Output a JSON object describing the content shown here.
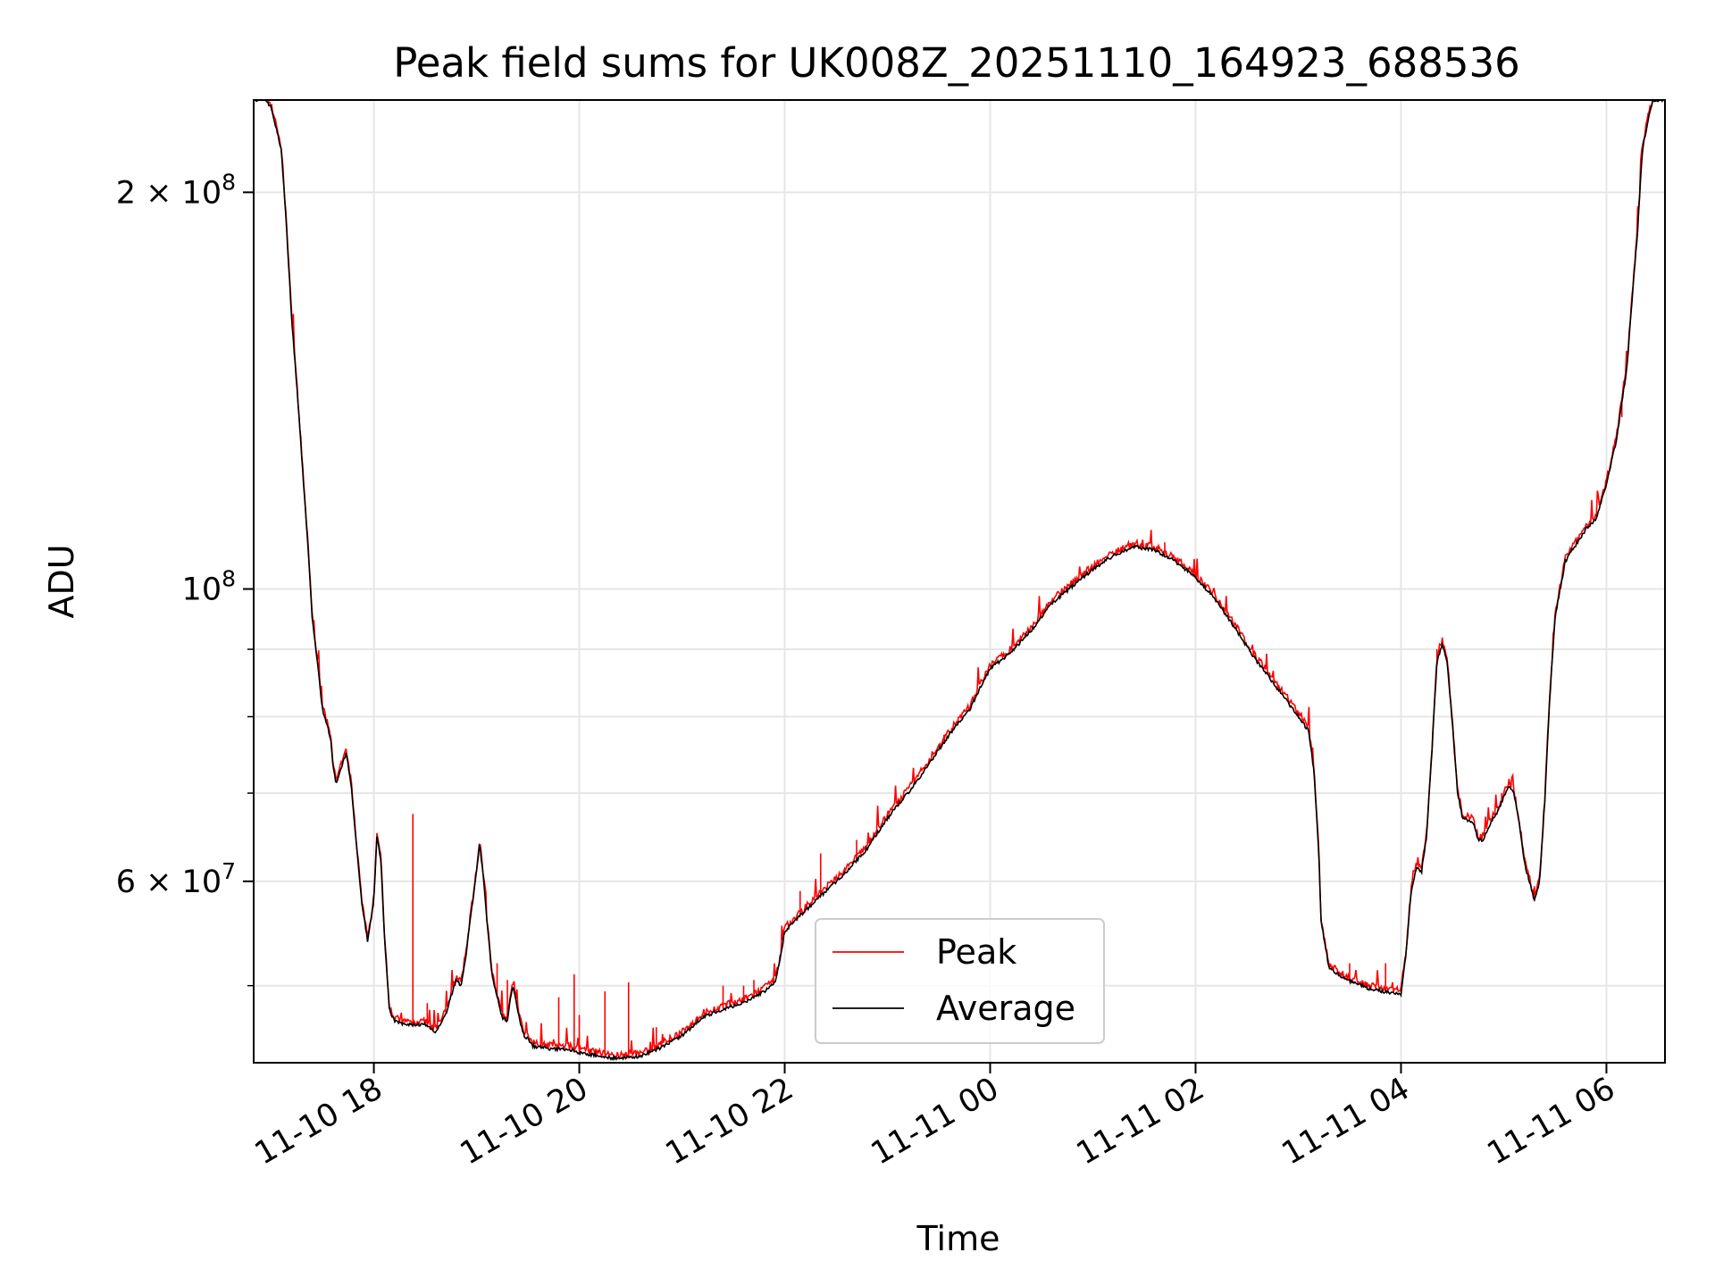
{
  "chart_data": {
    "type": "line",
    "title": "Peak field sums for UK008Z_20251110_164923_688536",
    "xlabel": "Time",
    "ylabel": "ADU",
    "yscale": "log",
    "grid": true,
    "legend_position": "lower center",
    "xlim_hours": [
      16.83,
      30.57
    ],
    "ylim": [
      43700000,
      235000000
    ],
    "x_units": "hours since 2025-11-10 00:00",
    "x_ticks": [
      {
        "value": 18,
        "label": "11-10 18"
      },
      {
        "value": 20,
        "label": "11-10 20"
      },
      {
        "value": 22,
        "label": "11-10 22"
      },
      {
        "value": 24,
        "label": "11-11 00"
      },
      {
        "value": 26,
        "label": "11-11 02"
      },
      {
        "value": 28,
        "label": "11-11 04"
      },
      {
        "value": 30,
        "label": "11-11 06"
      }
    ],
    "y_major_ticks": [
      {
        "value": 60000000,
        "base": "6 × 10",
        "exp": "7"
      },
      {
        "value": 100000000,
        "base": "10",
        "exp": "8"
      },
      {
        "value": 200000000,
        "base": "2 × 10",
        "exp": "8"
      }
    ],
    "y_minor_gridlines": [
      50000000,
      70000000,
      80000000,
      90000000
    ],
    "colors": {
      "peak": "#ff0000",
      "average": "#000000",
      "grid": "#e6e6e6",
      "legend_border": "#cccccc"
    },
    "series": [
      {
        "name": "Average",
        "color": "#000000",
        "points": [
          [
            16.85,
            235
          ],
          [
            16.95,
            235
          ],
          [
            17.0,
            232
          ],
          [
            17.1,
            215
          ],
          [
            17.2,
            160
          ],
          [
            17.3,
            125
          ],
          [
            17.4,
            95
          ],
          [
            17.5,
            81
          ],
          [
            17.58,
            77
          ],
          [
            17.6,
            74
          ],
          [
            17.63,
            71
          ],
          [
            17.68,
            73
          ],
          [
            17.73,
            75
          ],
          [
            17.78,
            71
          ],
          [
            17.83,
            64
          ],
          [
            17.88,
            58
          ],
          [
            17.94,
            54
          ],
          [
            18.0,
            58
          ],
          [
            18.03,
            65
          ],
          [
            18.07,
            62
          ],
          [
            18.1,
            55
          ],
          [
            18.15,
            48
          ],
          [
            18.2,
            47
          ],
          [
            18.3,
            46.7
          ],
          [
            18.4,
            46.7
          ],
          [
            18.5,
            46.7
          ],
          [
            18.6,
            46
          ],
          [
            18.7,
            47.6
          ],
          [
            18.75,
            49
          ],
          [
            18.8,
            50.5
          ],
          [
            18.85,
            50
          ],
          [
            18.9,
            53
          ],
          [
            18.95,
            57
          ],
          [
            19.0,
            61
          ],
          [
            19.03,
            64
          ],
          [
            19.07,
            60
          ],
          [
            19.1,
            56
          ],
          [
            19.15,
            51
          ],
          [
            19.2,
            49
          ],
          [
            19.25,
            47.3
          ],
          [
            19.3,
            47
          ],
          [
            19.35,
            50
          ],
          [
            19.4,
            48
          ],
          [
            19.45,
            46
          ],
          [
            19.55,
            45
          ],
          [
            19.7,
            44.8
          ],
          [
            19.9,
            44.7
          ],
          [
            20.0,
            44.5
          ],
          [
            20.2,
            44.2
          ],
          [
            20.4,
            44
          ],
          [
            20.6,
            44.2
          ],
          [
            20.8,
            44.9
          ],
          [
            21.0,
            45.8
          ],
          [
            21.2,
            47.3
          ],
          [
            21.4,
            48
          ],
          [
            21.6,
            48.5
          ],
          [
            21.8,
            49.5
          ],
          [
            21.9,
            50.2
          ],
          [
            21.95,
            52
          ],
          [
            22.0,
            55
          ],
          [
            22.2,
            57
          ],
          [
            22.4,
            59
          ],
          [
            22.6,
            61
          ],
          [
            22.8,
            63.5
          ],
          [
            23.0,
            67
          ],
          [
            23.2,
            70
          ],
          [
            23.4,
            73.5
          ],
          [
            23.6,
            77.5
          ],
          [
            23.8,
            81
          ],
          [
            24.0,
            87
          ],
          [
            24.2,
            89.5
          ],
          [
            24.4,
            93
          ],
          [
            24.6,
            97.5
          ],
          [
            24.8,
            100.5
          ],
          [
            25.0,
            103.5
          ],
          [
            25.2,
            106
          ],
          [
            25.4,
            107.7
          ],
          [
            25.6,
            107
          ],
          [
            25.8,
            105
          ],
          [
            26.0,
            102
          ],
          [
            26.2,
            98
          ],
          [
            26.4,
            93
          ],
          [
            26.6,
            88
          ],
          [
            26.8,
            84
          ],
          [
            27.0,
            80
          ],
          [
            27.1,
            78
          ],
          [
            27.15,
            73
          ],
          [
            27.2,
            63
          ],
          [
            27.22,
            56
          ],
          [
            27.3,
            51.5
          ],
          [
            27.5,
            50.4
          ],
          [
            27.7,
            49.7
          ],
          [
            27.9,
            49.4
          ],
          [
            28.0,
            49.3
          ],
          [
            28.05,
            53
          ],
          [
            28.1,
            59
          ],
          [
            28.15,
            61.5
          ],
          [
            28.2,
            61
          ],
          [
            28.25,
            65
          ],
          [
            28.3,
            75
          ],
          [
            28.35,
            88
          ],
          [
            28.4,
            91
          ],
          [
            28.45,
            88
          ],
          [
            28.5,
            79
          ],
          [
            28.55,
            70
          ],
          [
            28.6,
            67
          ],
          [
            28.7,
            66.5
          ],
          [
            28.75,
            64.5
          ],
          [
            28.8,
            64.5
          ],
          [
            28.85,
            66
          ],
          [
            28.9,
            67
          ],
          [
            28.95,
            68
          ],
          [
            29.0,
            69.5
          ],
          [
            29.05,
            71
          ],
          [
            29.1,
            70
          ],
          [
            29.15,
            66.5
          ],
          [
            29.2,
            62
          ],
          [
            29.25,
            60
          ],
          [
            29.3,
            58
          ],
          [
            29.35,
            60
          ],
          [
            29.4,
            69
          ],
          [
            29.45,
            83
          ],
          [
            29.5,
            95
          ],
          [
            29.6,
            105
          ],
          [
            29.7,
            108
          ],
          [
            29.8,
            111
          ],
          [
            29.9,
            113
          ],
          [
            30.0,
            120
          ],
          [
            30.1,
            130
          ],
          [
            30.2,
            147
          ],
          [
            30.3,
            185
          ],
          [
            30.35,
            215
          ],
          [
            30.4,
            226
          ],
          [
            30.45,
            234
          ],
          [
            30.5,
            235
          ],
          [
            30.57,
            235
          ]
        ]
      },
      {
        "name": "Peak",
        "color": "#ff0000",
        "spikes": [
          [
            18.38,
            67.5
          ],
          [
            18.52,
            48.5
          ],
          [
            19.2,
            52
          ],
          [
            19.3,
            50.5
          ],
          [
            19.8,
            49
          ],
          [
            19.95,
            51
          ],
          [
            20.0,
            47.5
          ],
          [
            20.25,
            49.5
          ],
          [
            20.48,
            50.3
          ],
          [
            20.75,
            46.5
          ],
          [
            21.4,
            50
          ],
          [
            21.6,
            50
          ],
          [
            21.7,
            50.5
          ],
          [
            22.15,
            59
          ],
          [
            22.35,
            63
          ],
          [
            22.7,
            64.5
          ],
          [
            23.1,
            69
          ],
          [
            23.55,
            77.5
          ],
          [
            24.5,
            95.5
          ],
          [
            25.7,
            108.5
          ],
          [
            27.5,
            52
          ],
          [
            27.85,
            52
          ],
          [
            28.35,
            90
          ],
          [
            28.98,
            70
          ],
          [
            29.0,
            70
          ],
          [
            29.3,
            59.5
          ],
          [
            30.15,
            135
          ]
        ]
      }
    ]
  }
}
